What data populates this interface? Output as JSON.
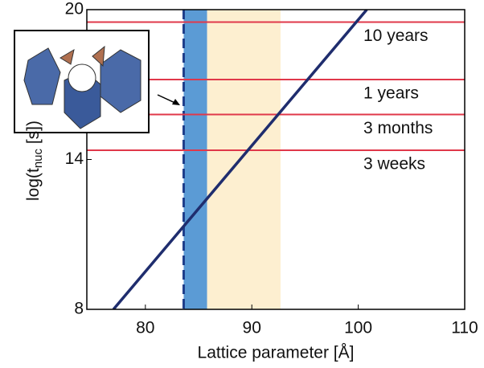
{
  "chart_data": {
    "type": "line",
    "xlabel": "Lattice parameter [Å]",
    "ylabel": {
      "text": "log(t",
      "sub": "nuc",
      "tail": " [s])"
    },
    "xlim": [
      74.5,
      110
    ],
    "xticks": [
      80,
      90,
      100,
      110
    ],
    "ylim": [
      8,
      20
    ],
    "yticks": [
      8,
      14,
      20
    ],
    "series": [
      {
        "color": "#1f2d6e",
        "x": [
          77,
          100.8
        ],
        "values": [
          8,
          20
        ]
      }
    ],
    "thresholds": [
      {
        "label": "10 years",
        "value": 19.5,
        "color": "#e0384a"
      },
      {
        "label": "1 years",
        "value": 17.2,
        "color": "#e0384a"
      },
      {
        "label": "3 months",
        "value": 15.8,
        "color": "#e0384a"
      },
      {
        "label": "3 weeks",
        "value": 14.37,
        "color": "#e0384a"
      }
    ],
    "bands": [
      {
        "from": 83.6,
        "to": 85.8,
        "color": "#5b9bd5"
      },
      {
        "from": 85.8,
        "to": 92.7,
        "color": "#fdefd0"
      }
    ],
    "marker_line": {
      "value": 83.6,
      "color": "#1f3f8a"
    }
  }
}
